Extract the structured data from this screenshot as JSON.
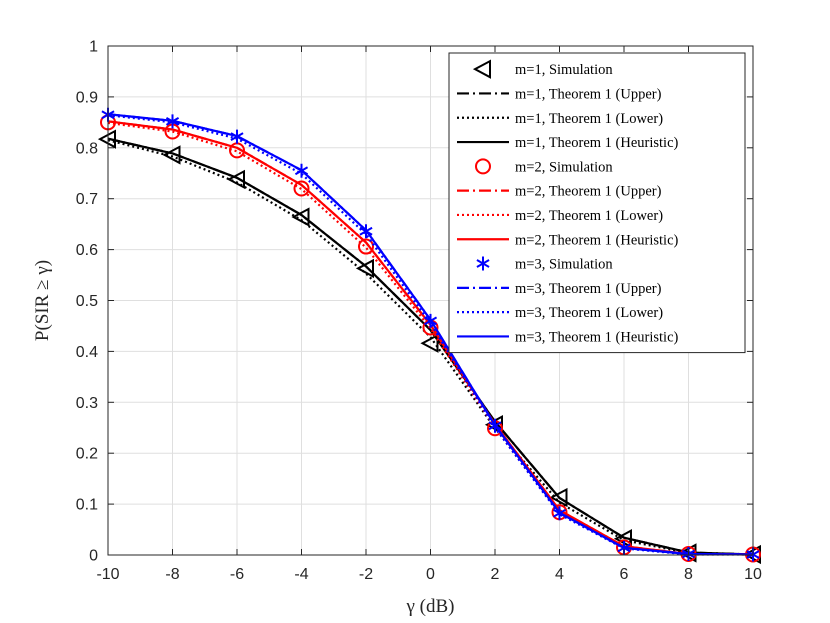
{
  "chart_data": {
    "type": "line",
    "xlabel": "γ (dB)",
    "ylabel": "P(SIR ≥ γ)",
    "xlim": [
      -10,
      10
    ],
    "ylim": [
      0,
      1
    ],
    "xticks": [
      -10,
      -8,
      -6,
      -4,
      -2,
      0,
      2,
      4,
      6,
      8,
      10
    ],
    "yticks": [
      0,
      0.1,
      0.2,
      0.3,
      0.4,
      0.5,
      0.6,
      0.7,
      0.8,
      0.9,
      1
    ],
    "xtick_labels": [
      "-10",
      "-8",
      "-6",
      "-4",
      "-2",
      "0",
      "2",
      "4",
      "6",
      "8",
      "10"
    ],
    "ytick_labels": [
      "0",
      "0.1",
      "0.2",
      "0.3",
      "0.4",
      "0.5",
      "0.6",
      "0.7",
      "0.8",
      "0.9",
      "1"
    ],
    "grid": true,
    "legend_position": "top-right",
    "x": [
      -10,
      -8,
      -6,
      -4,
      -2,
      0,
      2,
      4,
      6,
      8,
      10
    ],
    "series": [
      {
        "name": "m=1, Simulation",
        "color": "#000000",
        "style": "marker",
        "marker": "triangle-left",
        "values": [
          0.817,
          0.786,
          0.738,
          0.664,
          0.563,
          0.416,
          0.256,
          0.113,
          0.032,
          0.004,
          0.001
        ]
      },
      {
        "name": "m=1, Theorem 1 (Upper)",
        "color": "#000000",
        "style": "dashdot",
        "values": [
          0.818,
          0.789,
          0.741,
          0.668,
          0.567,
          0.442,
          0.262,
          0.112,
          0.034,
          0.005,
          0.001
        ]
      },
      {
        "name": "m=1, Theorem 1 (Lower)",
        "color": "#000000",
        "style": "dotted",
        "values": [
          0.815,
          0.783,
          0.732,
          0.658,
          0.553,
          0.428,
          0.249,
          0.103,
          0.029,
          0.004,
          0.001
        ]
      },
      {
        "name": "m=1, Theorem 1 (Heuristic)",
        "color": "#000000",
        "style": "solid",
        "values": [
          0.818,
          0.789,
          0.741,
          0.668,
          0.567,
          0.442,
          0.262,
          0.112,
          0.034,
          0.005,
          0.001
        ]
      },
      {
        "name": "m=2, Simulation",
        "color": "#ff0000",
        "style": "marker",
        "marker": "circle",
        "values": [
          0.85,
          0.832,
          0.795,
          0.72,
          0.606,
          0.447,
          0.249,
          0.084,
          0.015,
          0.002,
          0.001
        ]
      },
      {
        "name": "m=2, Theorem 1 (Upper)",
        "color": "#ff0000",
        "style": "dashdot",
        "values": [
          0.852,
          0.836,
          0.8,
          0.727,
          0.614,
          0.452,
          0.257,
          0.088,
          0.017,
          0.002,
          0.001
        ]
      },
      {
        "name": "m=2, Theorem 1 (Lower)",
        "color": "#ff0000",
        "style": "dotted",
        "values": [
          0.849,
          0.832,
          0.793,
          0.719,
          0.604,
          0.445,
          0.25,
          0.083,
          0.015,
          0.002,
          0.001
        ]
      },
      {
        "name": "m=2, Theorem 1 (Heuristic)",
        "color": "#ff0000",
        "style": "solid",
        "values": [
          0.852,
          0.836,
          0.8,
          0.727,
          0.614,
          0.452,
          0.257,
          0.088,
          0.017,
          0.002,
          0.001
        ]
      },
      {
        "name": "m=3, Simulation",
        "color": "#0000ff",
        "style": "marker",
        "marker": "asterisk",
        "values": [
          0.865,
          0.852,
          0.822,
          0.755,
          0.636,
          0.46,
          0.254,
          0.082,
          0.014,
          0.002,
          0.001
        ]
      },
      {
        "name": "m=3, Theorem 1 (Upper)",
        "color": "#0000ff",
        "style": "dashdot",
        "values": [
          0.866,
          0.853,
          0.823,
          0.756,
          0.638,
          0.462,
          0.255,
          0.083,
          0.014,
          0.002,
          0.001
        ]
      },
      {
        "name": "m=3, Theorem 1 (Lower)",
        "color": "#0000ff",
        "style": "dotted",
        "values": [
          0.864,
          0.85,
          0.818,
          0.749,
          0.63,
          0.455,
          0.25,
          0.08,
          0.013,
          0.001,
          0.001
        ]
      },
      {
        "name": "m=3, Theorem 1 (Heuristic)",
        "color": "#0000ff",
        "style": "solid",
        "values": [
          0.866,
          0.853,
          0.823,
          0.756,
          0.638,
          0.462,
          0.255,
          0.083,
          0.014,
          0.002,
          0.001
        ]
      }
    ]
  }
}
